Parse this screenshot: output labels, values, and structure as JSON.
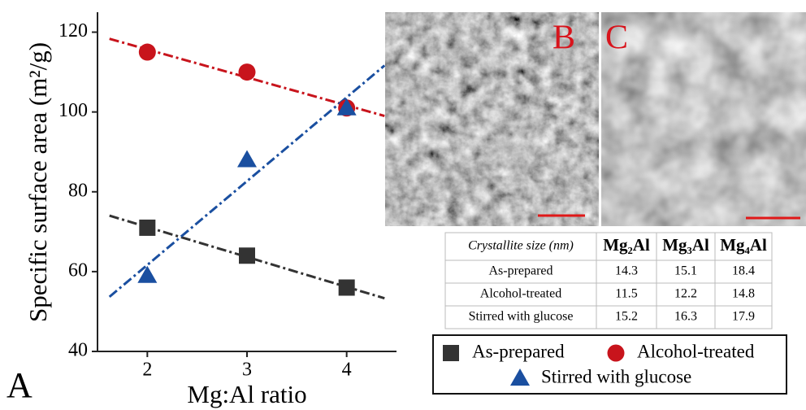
{
  "chart_data": {
    "type": "scatter",
    "panel_label": "A",
    "xlabel": "Mg:Al ratio",
    "ylabel": "Specific surface area (m²/g)",
    "x": [
      2,
      3,
      4
    ],
    "series": [
      {
        "name": "As-prepared",
        "color": "#333333",
        "marker": "square",
        "values": [
          71,
          64,
          56
        ]
      },
      {
        "name": "Alcohol-treated",
        "color": "#c8141c",
        "marker": "circle",
        "values": [
          115,
          110,
          101
        ]
      },
      {
        "name": "Stirred with glucose",
        "color": "#1a4fa0",
        "marker": "triangle",
        "values": [
          59,
          88,
          101
        ]
      }
    ],
    "xlim": [
      1.5,
      4.5
    ],
    "xticks": [
      2,
      3,
      4
    ],
    "ylim": [
      40,
      125
    ],
    "yticks": [
      40,
      60,
      80,
      100,
      120
    ],
    "trend_lines": true
  },
  "images": [
    {
      "label": "B"
    },
    {
      "label": "C"
    }
  ],
  "table": {
    "header": [
      "Crystallite size (nm)",
      "Mg₂Al",
      "Mg₃Al",
      "Mg₄Al"
    ],
    "rows": [
      [
        "As-prepared",
        14.3,
        15.1,
        18.4
      ],
      [
        "Alcohol-treated",
        11.5,
        12.2,
        14.8
      ],
      [
        "Stirred with glucose",
        15.2,
        16.3,
        17.9
      ]
    ]
  }
}
